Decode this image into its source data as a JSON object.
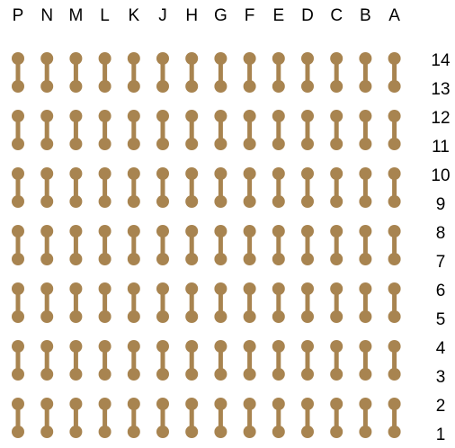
{
  "columns": [
    "P",
    "N",
    "M",
    "L",
    "K",
    "J",
    "H",
    "G",
    "F",
    "E",
    "D",
    "C",
    "B",
    "A"
  ],
  "rows": [
    "14",
    "13",
    "12",
    "11",
    "10",
    "9",
    "8",
    "7",
    "6",
    "5",
    "4",
    "3",
    "2",
    "1"
  ]
}
